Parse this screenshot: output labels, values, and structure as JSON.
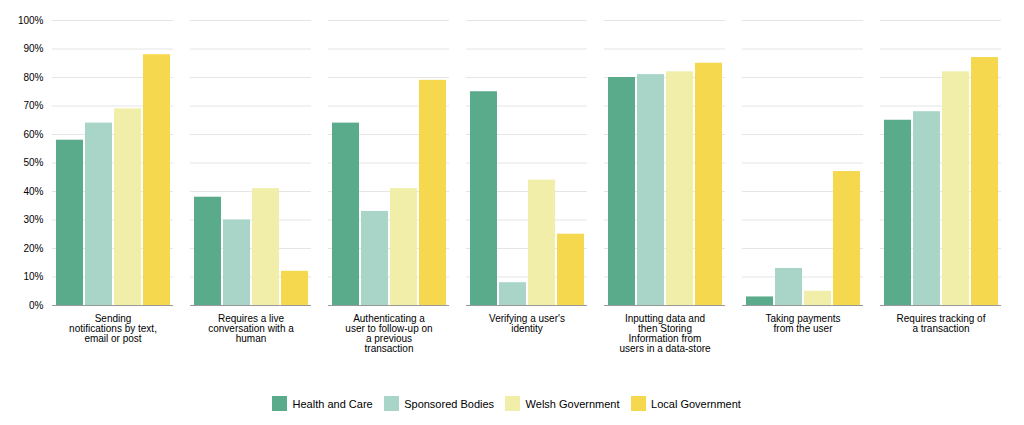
{
  "chart_data": {
    "type": "bar",
    "categories": [
      "Sending\nnotifications by text,\nemail or post",
      "Requires a live\nconversation with a\nhuman",
      "Authenticating a\nuser to follow-up on\na previous\ntransaction",
      "Verifying a user's\nidentity",
      "Inputting data and\nthen Storing\nInformation from\nusers in a data-store",
      "Taking payments\nfrom the user",
      "Requires tracking of\na transaction"
    ],
    "series": [
      {
        "name": "Health and Care",
        "color": "#5aaa8c",
        "values": [
          58,
          38,
          64,
          75,
          80,
          3,
          65
        ]
      },
      {
        "name": "Sponsored Bodies",
        "color": "#a8d5c8",
        "values": [
          64,
          30,
          33,
          8,
          81,
          13,
          68
        ]
      },
      {
        "name": "Welsh Government",
        "color": "#f0eea8",
        "values": [
          69,
          41,
          41,
          44,
          82,
          5,
          82
        ]
      },
      {
        "name": "Local Government",
        "color": "#f5d84e",
        "values": [
          88,
          12,
          79,
          25,
          85,
          47,
          87
        ]
      }
    ],
    "ylim": [
      0,
      100
    ],
    "yticks": [
      {
        "value": 0,
        "label": "0%"
      },
      {
        "value": 10,
        "label": "10%"
      },
      {
        "value": 20,
        "label": "20%"
      },
      {
        "value": 30,
        "label": "30%"
      },
      {
        "value": 40,
        "label": "40%"
      },
      {
        "value": 50,
        "label": "50%"
      },
      {
        "value": 60,
        "label": "60%"
      },
      {
        "value": 70,
        "label": "70%"
      },
      {
        "value": 80,
        "label": "80%"
      },
      {
        "value": 90,
        "label": "90%"
      },
      {
        "value": 100,
        "label": "100%"
      }
    ],
    "grid": true,
    "legend": "bottom"
  }
}
